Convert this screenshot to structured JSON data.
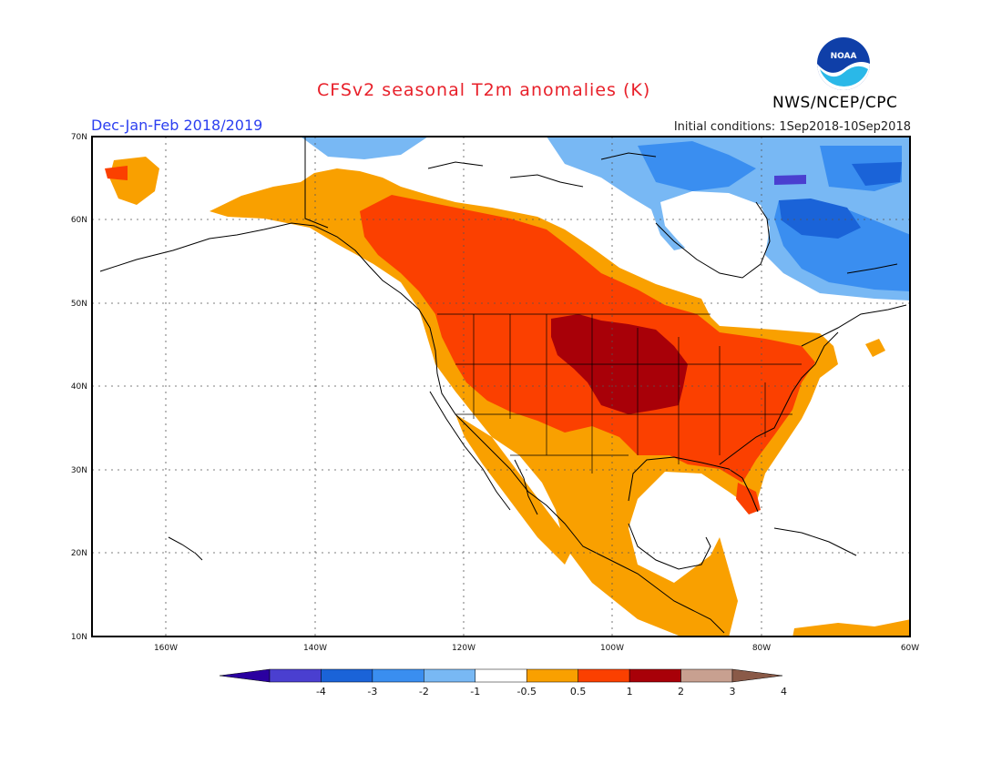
{
  "title": "CFSv2 seasonal T2m anomalies (K)",
  "period": "Dec-Jan-Feb 2018/2019",
  "initial_conditions": "Initial conditions: 1Sep2018-10Sep2018",
  "organization": "NWS/NCEP/CPC",
  "logo_text": "NOAA",
  "map": {
    "lon_range": [
      -170,
      -60
    ],
    "lat_range": [
      10,
      70
    ],
    "lat_labels": [
      "70N",
      "60N",
      "50N",
      "40N",
      "30N",
      "20N",
      "10N"
    ],
    "lon_labels": [
      "160W",
      "140W",
      "120W",
      "100W",
      "80W",
      "60W"
    ],
    "grid": "dotted"
  },
  "colorbar": {
    "colors": [
      "#2a00a0",
      "#4a3fd0",
      "#1a63d8",
      "#3a8ef0",
      "#78b8f4",
      "#ffffff",
      "#f9a000",
      "#fb4000",
      "#a80008",
      "#c8a090",
      "#8a5a48"
    ],
    "tick_labels": [
      "-4",
      "-3",
      "-2",
      "-1",
      "-0.5",
      "0.5",
      "1",
      "2",
      "3",
      "4"
    ]
  },
  "colors": {
    "title": "#e8202a",
    "period": "#2c3ff0",
    "anom_0_5_1": "#f9a000",
    "anom_1_2": "#fb4000",
    "anom_2_3": "#a80008",
    "anom_neg_05_1": "#78b8f4",
    "anom_neg_1_2": "#3a8ef0",
    "anom_neg_2_3": "#1a63d8"
  }
}
